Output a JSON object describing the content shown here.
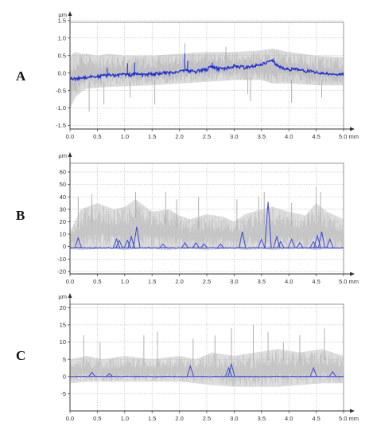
{
  "chart_data": [
    {
      "type": "line",
      "panel_label": "A",
      "y_unit": "µm",
      "x_unit": "mm",
      "xlim": [
        0,
        5.0
      ],
      "ylim": [
        -1.6,
        1.45
      ],
      "x_ticks": [
        "0.0",
        "0.5",
        "1.0",
        "1.5",
        "2.0",
        "2.5",
        "3.0",
        "3.5",
        "4.0",
        "4.5",
        "5.0 mm"
      ],
      "x_tick_values": [
        0,
        0.5,
        1,
        1.5,
        2,
        2.5,
        3,
        3.5,
        4,
        4.5,
        5
      ],
      "y_ticks": [
        "1.5",
        "1.0",
        "0.5",
        "0.0",
        "-0.5",
        "-1.0",
        "-1.5"
      ],
      "y_tick_values": [
        1.5,
        1.0,
        0.5,
        0.0,
        -0.5,
        -1.0,
        -1.5
      ],
      "grid": true,
      "colors": {
        "mean": "#1f2fd6",
        "band": "#bdbdbd",
        "grid": "#aaaaaa"
      },
      "series": [
        {
          "role": "mean",
          "x": [
            0.0,
            0.1,
            0.2,
            0.3,
            0.4,
            0.5,
            0.6,
            0.7,
            0.8,
            0.9,
            1.0,
            1.1,
            1.2,
            1.3,
            1.4,
            1.5,
            1.6,
            1.7,
            1.8,
            1.9,
            2.0,
            2.1,
            2.2,
            2.3,
            2.4,
            2.5,
            2.6,
            2.7,
            2.8,
            2.9,
            3.0,
            3.1,
            3.2,
            3.3,
            3.4,
            3.5,
            3.6,
            3.7,
            3.8,
            3.9,
            4.0,
            4.1,
            4.2,
            4.3,
            4.4,
            4.5,
            4.6,
            4.7,
            4.8,
            4.9,
            5.0
          ],
          "y": [
            -0.15,
            -0.18,
            -0.13,
            -0.12,
            -0.1,
            -0.1,
            -0.08,
            -0.06,
            -0.07,
            -0.05,
            -0.04,
            -0.06,
            -0.03,
            -0.05,
            -0.04,
            -0.03,
            -0.02,
            0.0,
            -0.01,
            0.02,
            0.05,
            0.1,
            0.05,
            0.04,
            0.08,
            0.1,
            0.18,
            0.12,
            0.12,
            0.15,
            0.2,
            0.18,
            0.15,
            0.2,
            0.22,
            0.25,
            0.3,
            0.35,
            0.2,
            0.12,
            0.1,
            0.12,
            0.08,
            0.05,
            0.05,
            0.02,
            -0.02,
            0.0,
            -0.05,
            -0.02,
            -0.04
          ],
          "spikes_x": [
            0.68,
            1.05,
            1.18,
            2.1,
            2.15,
            2.6,
            3.6,
            3.72
          ],
          "spikes_y": [
            0.15,
            0.28,
            0.3,
            0.55,
            0.35,
            0.3,
            0.32,
            0.42
          ]
        },
        {
          "role": "band",
          "x": [
            0.0,
            0.05,
            0.1,
            0.2,
            0.3,
            0.5,
            0.7,
            1.0,
            1.5,
            2.0,
            2.5,
            3.0,
            3.5,
            3.7,
            4.0,
            4.5,
            5.0
          ],
          "upper": [
            0.45,
            0.55,
            0.6,
            0.55,
            0.55,
            0.5,
            0.55,
            0.5,
            0.5,
            0.55,
            0.6,
            0.6,
            0.65,
            0.7,
            0.6,
            0.5,
            0.45
          ],
          "lower": [
            -1.05,
            -0.85,
            -0.7,
            -0.55,
            -0.45,
            -0.42,
            -0.4,
            -0.38,
            -0.35,
            -0.3,
            -0.25,
            -0.2,
            -0.2,
            -0.3,
            -0.3,
            -0.35,
            -0.35
          ],
          "spikes_x": [
            0.35,
            0.62,
            1.1,
            1.55,
            2.1,
            2.85,
            3.25,
            3.3,
            4.05,
            4.6
          ],
          "spikes_y": [
            -1.1,
            -0.9,
            -0.7,
            -0.9,
            0.85,
            0.75,
            -0.6,
            -0.8,
            -0.85,
            -0.7
          ]
        }
      ]
    },
    {
      "type": "line",
      "panel_label": "B",
      "y_unit": "µm",
      "x_unit": "mm",
      "xlim": [
        0,
        5.0
      ],
      "ylim": [
        -22,
        67
      ],
      "x_ticks": [
        "0.0",
        "0.5",
        "1.0",
        "1.5",
        "2.0",
        "2.5",
        "3.0",
        "3.5",
        "4.0",
        "4.5",
        "5.0 mm"
      ],
      "x_tick_values": [
        0,
        0.5,
        1,
        1.5,
        2,
        2.5,
        3,
        3.5,
        4,
        4.5,
        5
      ],
      "y_ticks": [
        "60",
        "50",
        "40",
        "30",
        "20",
        "10",
        "0",
        "-10",
        "-20"
      ],
      "y_tick_values": [
        60,
        50,
        40,
        30,
        20,
        10,
        0,
        -10,
        -20
      ],
      "grid": true,
      "colors": {
        "mean": "#3b48d6",
        "band": "#c2c2c2",
        "grid": "#aaaaaa"
      },
      "series": [
        {
          "role": "mean",
          "baseline": -1,
          "spikes_x": [
            0.15,
            0.85,
            0.9,
            1.05,
            1.12,
            1.22,
            1.7,
            2.1,
            2.3,
            2.45,
            2.75,
            3.15,
            3.5,
            3.62,
            3.78,
            3.85,
            4.05,
            4.2,
            4.45,
            4.52,
            4.6,
            4.75
          ],
          "spikes_y": [
            7,
            6,
            5,
            5,
            8,
            16,
            2,
            3,
            3,
            2,
            2,
            12,
            6,
            36,
            8,
            4,
            6,
            3,
            4,
            9,
            12,
            6
          ]
        },
        {
          "role": "band",
          "x": [
            0.0,
            0.2,
            0.5,
            0.8,
            1.0,
            1.2,
            1.5,
            1.8,
            2.0,
            2.2,
            2.5,
            2.8,
            3.0,
            3.2,
            3.5,
            3.7,
            4.0,
            4.3,
            4.5,
            4.7,
            5.0
          ],
          "upper": [
            12,
            30,
            35,
            30,
            32,
            38,
            28,
            30,
            25,
            22,
            26,
            24,
            20,
            26,
            30,
            32,
            28,
            25,
            35,
            28,
            22
          ],
          "lower": [
            -2,
            -3,
            -2,
            -2,
            -3,
            -2,
            -2,
            -3,
            -2,
            -2,
            -3,
            -2,
            -2,
            -3,
            -2,
            -3,
            -2,
            -2,
            -3,
            -2,
            -2
          ],
          "spikes_x": [
            0.15,
            0.4,
            1.2,
            1.75,
            1.95,
            2.35,
            3.05,
            3.45,
            3.55,
            4.05,
            4.35,
            4.5,
            4.58
          ],
          "spikes_y": [
            40,
            42,
            44,
            44,
            38,
            40,
            38,
            40,
            44,
            35,
            26,
            48,
            44
          ]
        }
      ]
    },
    {
      "type": "line",
      "panel_label": "C",
      "y_unit": "µm",
      "x_unit": "mm",
      "xlim": [
        0,
        5.0
      ],
      "ylim": [
        -10,
        21
      ],
      "x_ticks": [
        "0.0",
        "0.5",
        "1.0",
        "1.5",
        "2.0",
        "2.5",
        "3.0",
        "3.5",
        "4.0",
        "4.5",
        "5.0 mm"
      ],
      "x_tick_values": [
        0,
        0.5,
        1,
        1.5,
        2,
        2.5,
        3,
        3.5,
        4,
        4.5,
        5
      ],
      "y_ticks": [
        "20",
        "15",
        "10",
        "5",
        "0",
        "-5"
      ],
      "y_tick_values": [
        20,
        15,
        10,
        5,
        0,
        -5
      ],
      "grid": true,
      "colors": {
        "mean": "#3b48d6",
        "band": "#c2c2c2",
        "grid": "#aaaaaa"
      },
      "series": [
        {
          "role": "mean",
          "baseline": 0,
          "spikes_x": [
            0.4,
            0.72,
            2.2,
            2.9,
            2.95,
            4.45,
            4.8
          ],
          "spikes_y": [
            1.2,
            0.8,
            3.0,
            2.5,
            3.6,
            2.5,
            1.4
          ]
        },
        {
          "role": "band",
          "x": [
            0.0,
            0.3,
            0.6,
            1.0,
            1.5,
            2.0,
            2.3,
            2.6,
            3.0,
            3.4,
            3.8,
            4.2,
            4.6,
            5.0
          ],
          "upper": [
            5,
            6,
            5,
            6,
            5,
            6,
            5,
            7,
            6,
            7,
            8,
            7,
            8,
            6
          ],
          "lower": [
            -2,
            -1.5,
            -1.5,
            -1.5,
            -1.5,
            -1.5,
            -2,
            -2.5,
            -3,
            -3,
            -3,
            -2.5,
            -2,
            -2
          ],
          "spikes_x": [
            0.25,
            0.55,
            1.35,
            1.6,
            2.25,
            2.65,
            2.95,
            3.35,
            3.62,
            3.9,
            4.2,
            4.65
          ],
          "spikes_y": [
            12,
            10,
            12,
            13,
            11,
            12,
            14,
            15,
            13,
            10,
            12,
            14
          ]
        }
      ]
    }
  ]
}
